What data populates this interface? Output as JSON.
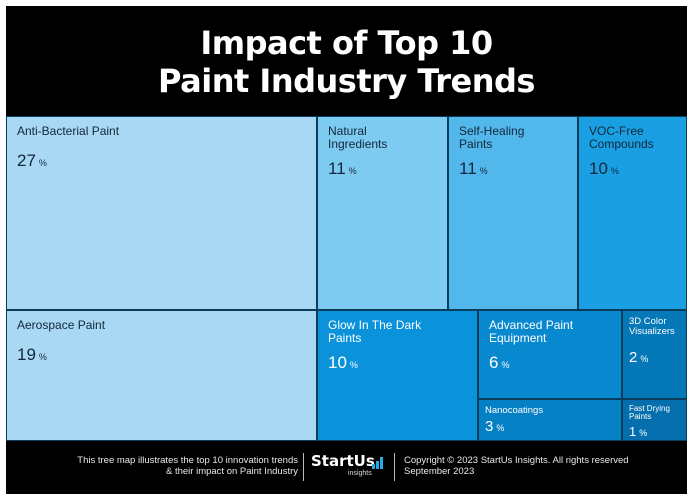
{
  "title_line1": "Impact of Top 10",
  "title_line2": "Paint Industry Trends",
  "footer": {
    "description": "This tree map illustrates the top 10 innovation trends\n& their impact on Paint Industry",
    "logo_text": "StartUs",
    "logo_sub": "insights",
    "copyright": "Copyright © 2023 StartUs Insights. All rights reserved\nSeptember 2023"
  },
  "chart_data": {
    "type": "treemap",
    "title": "Impact of Top 10 Paint Industry Trends",
    "unit": "%",
    "items": [
      {
        "label": "Anti-Bacterial Paint",
        "value": 27,
        "color": "#a8d8f4"
      },
      {
        "label": "Natural\nIngredients",
        "value": 11,
        "color": "#7ecbf1"
      },
      {
        "label": "Self-Healing\nPaints",
        "value": 11,
        "color": "#52b7ea"
      },
      {
        "label": "VOC-Free\nCompounds",
        "value": 10,
        "color": "#1aa0e2"
      },
      {
        "label": "Aerospace Paint",
        "value": 19,
        "color": "#a8d8f4"
      },
      {
        "label": "Glow In The Dark\nPaints",
        "value": 10,
        "color": "#0a93da"
      },
      {
        "label": "Advanced Paint\nEquipment",
        "value": 6,
        "color": "#0788cf"
      },
      {
        "label": "Nanocoatings",
        "value": 3,
        "color": "#0680c4"
      },
      {
        "label": "3D Color\nVisualizers",
        "value": 2,
        "color": "#0578b8"
      },
      {
        "label": "Fast Drying\nPaints",
        "value": 1,
        "color": "#056fae"
      }
    ]
  }
}
